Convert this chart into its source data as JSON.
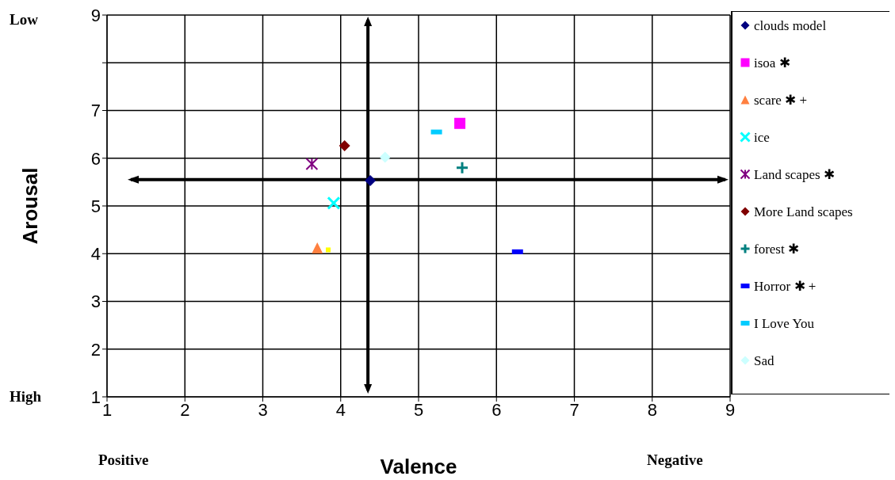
{
  "chart_data": {
    "type": "scatter",
    "xlabel": "Valence",
    "ylabel": "Arousal",
    "xlim": [
      1,
      9
    ],
    "xticks": [
      1,
      2,
      3,
      4,
      5,
      6,
      7,
      8,
      9
    ],
    "ylim": [
      1,
      9
    ],
    "yticks": [
      1,
      2,
      3,
      4,
      5,
      6,
      7,
      {
        "value": 8,
        "label": null
      },
      9
    ],
    "grid": true,
    "legend": "right",
    "annotations": [
      "Low",
      "High",
      "Positive",
      "Negative"
    ],
    "ref_lines": [
      {
        "axis": "x",
        "value": 4.35,
        "color": "#000000"
      },
      {
        "axis": "y",
        "value": 5.55,
        "color": "#000000"
      }
    ],
    "series": [
      {
        "name": "clouds model",
        "color": "#000080",
        "marker": "diamond",
        "x": [
          4.38
        ],
        "values": [
          5.53
        ]
      },
      {
        "name": "isoa ✱",
        "color": "#ff00ff",
        "marker": "square",
        "x": [
          5.53
        ],
        "values": [
          6.73
        ]
      },
      {
        "name": "scare ✱ +",
        "color": "#ff8040",
        "marker": "triangle",
        "x": [
          3.7
        ],
        "values": [
          4.12
        ]
      },
      {
        "name": "ice",
        "color": "#00ffff",
        "marker": "x",
        "x": [
          3.91
        ],
        "values": [
          5.06
        ]
      },
      {
        "name": "Land scapes ✱",
        "color": "#800080",
        "marker": "cross",
        "x": [
          3.63
        ],
        "values": [
          5.88
        ]
      },
      {
        "name": "More Land scapes",
        "color": "#800000",
        "marker": "diamond",
        "x": [
          4.05
        ],
        "values": [
          6.26
        ]
      },
      {
        "name": "forest ✱",
        "color": "#008080",
        "marker": "plus",
        "x": [
          5.56
        ],
        "values": [
          5.8
        ]
      },
      {
        "name": "Horror ✱ +",
        "color": "#0000ff",
        "x": [
          6.27
        ],
        "values": [
          4.04
        ]
      },
      {
        "name": "I Love You",
        "color": "#00ccff",
        "x": [
          5.23
        ],
        "values": [
          6.55
        ]
      },
      {
        "name": "Sad",
        "color": "#ccffff",
        "marker": "diamond",
        "x": [
          4.57
        ],
        "values": [
          6.02
        ]
      },
      {
        "color": "#ffff00",
        "marker": "square",
        "x": [
          3.84
        ],
        "values": [
          4.08
        ]
      }
    ]
  }
}
